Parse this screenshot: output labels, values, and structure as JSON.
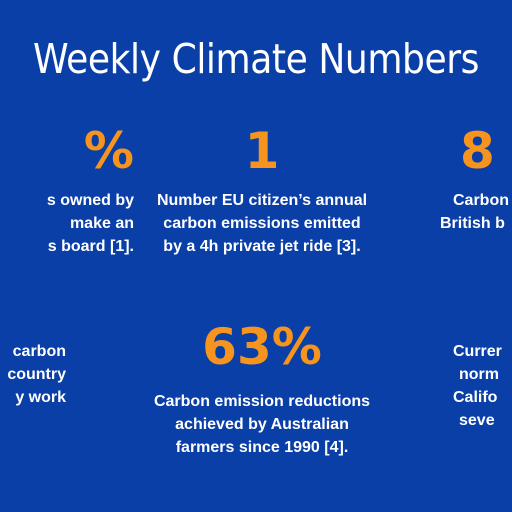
{
  "title": "Weekly Climate Numbers",
  "colors": {
    "background": "#0b3fa8",
    "value": "#f7941d",
    "text": "#ffffff"
  },
  "stats": [
    {
      "value": "%",
      "lines": [
        "s owned by",
        "make an",
        "s board [1]."
      ]
    },
    {
      "value": "1",
      "lines": [
        "Number EU citizen’s annual",
        "carbon emissions emitted",
        "by a 4h private jet ride [3]."
      ]
    },
    {
      "value": "8",
      "lines": [
        "Carbon",
        "British b"
      ]
    },
    {
      "value": "",
      "lines": [
        "carbon",
        "country",
        "y work"
      ]
    },
    {
      "value": "63%",
      "lines": [
        "Carbon emission reductions",
        "achieved by Australian",
        "farmers since 1990 [4]."
      ]
    },
    {
      "value": "",
      "lines": [
        "Currer",
        "norm",
        "Califo",
        "seve"
      ]
    }
  ]
}
